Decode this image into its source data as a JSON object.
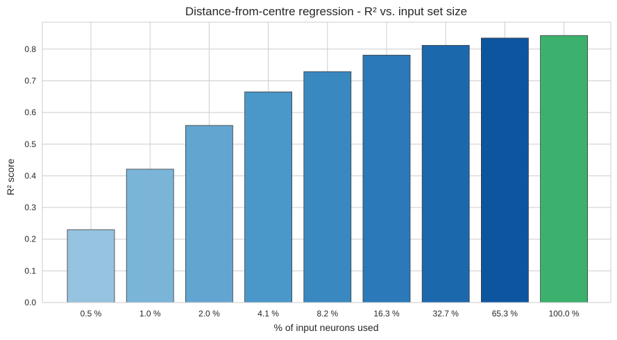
{
  "chart_data": {
    "type": "bar",
    "title": "Distance-from-centre regression - R² vs. input set size",
    "xlabel": "% of input neurons used",
    "ylabel": "R² score",
    "categories": [
      "0.5 %",
      "1.0 %",
      "2.0 %",
      "4.1 %",
      "8.2 %",
      "16.3 %",
      "32.7 %",
      "65.3 %",
      "100.0 %"
    ],
    "values": [
      0.23,
      0.421,
      0.559,
      0.665,
      0.729,
      0.781,
      0.812,
      0.835,
      0.843
    ],
    "colors": [
      "#96c3df",
      "#7ab5d8",
      "#62a5d0",
      "#4a97c9",
      "#3a88c0",
      "#2b79b8",
      "#1c68ad",
      "#0e55a0",
      "#3bb16d"
    ],
    "ylim": [
      0,
      0.885
    ],
    "yticks": [
      0.0,
      0.1,
      0.2,
      0.3,
      0.4,
      0.5,
      0.6,
      0.7,
      0.8
    ],
    "grid": true,
    "legend": "none"
  }
}
